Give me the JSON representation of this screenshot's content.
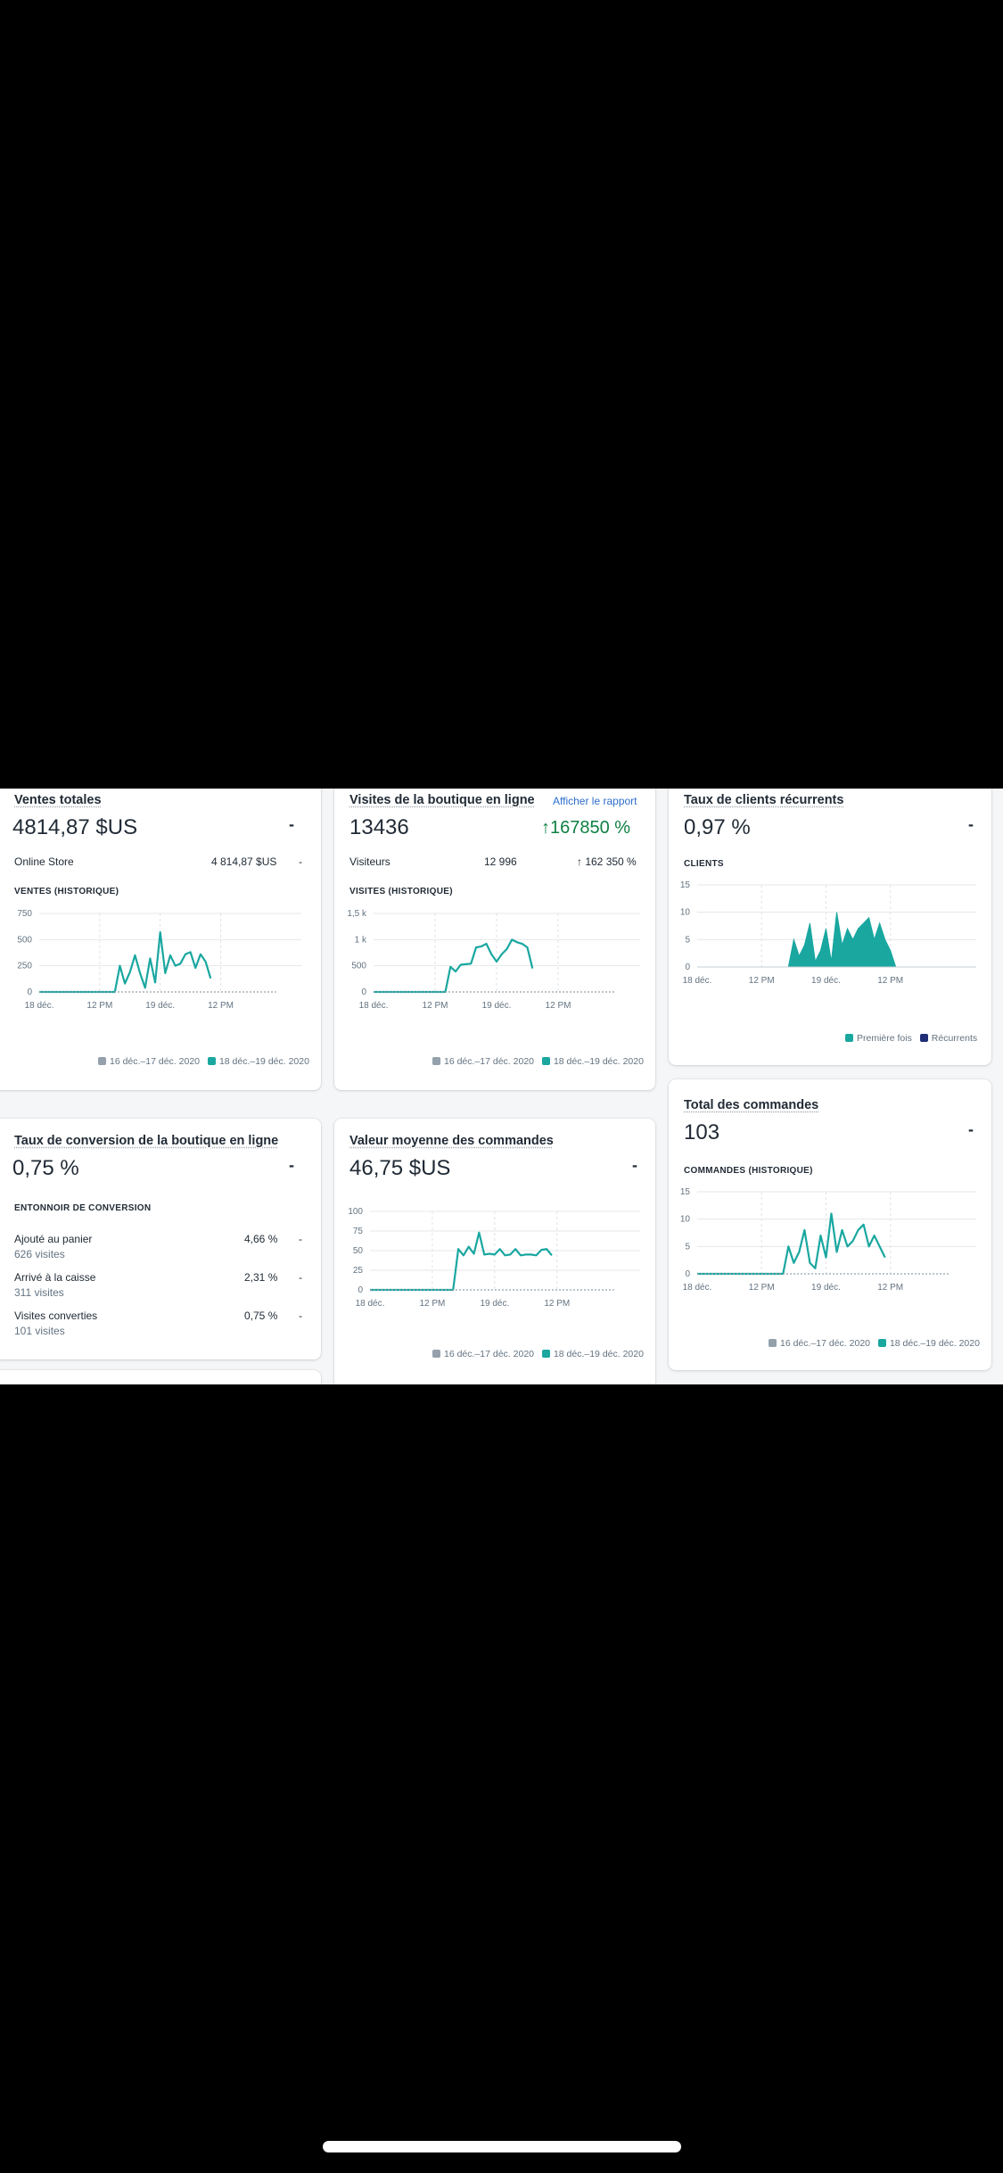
{
  "colors": {
    "accent": "#19a7a0",
    "previous": "#94a0ab",
    "dark": "#212b36",
    "muted": "#637381",
    "link": "#2c6ecb",
    "positive": "#108043"
  },
  "legend": {
    "previous": "16 déc.–17 déc. 2020",
    "current": "18 déc.–19 déc. 2020"
  },
  "sales": {
    "title": "Ventes totales",
    "value": "4814,87 $US",
    "change": "-",
    "row_label": "Online Store",
    "row_value": "4 814,87 $US",
    "row_change": "-",
    "caption": "VENTES (HISTORIQUE)"
  },
  "visits": {
    "title": "Visites de la boutique en ligne",
    "link": "Afficher le rapport",
    "value": "13436",
    "change": "167850 %",
    "change_icon": "arrow-up-icon",
    "row_label": "Visiteurs",
    "row_value": "12 996",
    "row_change": "↑ 162 350 %",
    "caption": "VISITES (HISTORIQUE)"
  },
  "returning": {
    "title": "Taux de clients récurrents",
    "value": "0,97 %",
    "change": "-",
    "caption": "CLIENTS",
    "legend_first": "Première fois",
    "legend_returning": "Récurrents"
  },
  "conversion": {
    "title": "Taux de conversion de la boutique en ligne",
    "value": "0,75 %",
    "change": "-",
    "caption": "ENTONNOIR DE CONVERSION",
    "rows": [
      {
        "label": "Ajouté au panier",
        "sub": "626 visites",
        "value": "4,66 %",
        "change": "-"
      },
      {
        "label": "Arrivé à la caisse",
        "sub": "311 visites",
        "value": "2,31 %",
        "change": "-"
      },
      {
        "label": "Visites converties",
        "sub": "101 visites",
        "value": "0,75 %",
        "change": "-"
      }
    ]
  },
  "aov": {
    "title": "Valeur moyenne des commandes",
    "value": "46,75 $US",
    "change": "-"
  },
  "orders": {
    "title": "Total des commandes",
    "value": "103",
    "change": "-",
    "caption": "COMMANDES (HISTORIQUE)"
  },
  "chart_data": [
    {
      "id": "sales",
      "type": "line",
      "title": "VENTES (HISTORIQUE)",
      "ylim": [
        0,
        750
      ],
      "yticks": [
        "0",
        "250",
        "500",
        "750"
      ],
      "xlim": [
        0,
        52
      ],
      "xticks": [
        {
          "at": 0,
          "label": "18 déc."
        },
        {
          "at": 12,
          "label": "12 PM"
        },
        {
          "at": 24,
          "label": "19 déc."
        },
        {
          "at": 36,
          "label": "12 PM"
        }
      ],
      "series": [
        {
          "name": "18 déc.–19 déc. 2020",
          "points": [
            [
              0,
              0
            ],
            [
              15,
              0
            ],
            [
              16,
              250
            ],
            [
              17,
              80
            ],
            [
              18,
              190
            ],
            [
              19,
              350
            ],
            [
              20,
              180
            ],
            [
              21,
              40
            ],
            [
              22,
              320
            ],
            [
              23,
              90
            ],
            [
              24,
              570
            ],
            [
              25,
              180
            ],
            [
              26,
              350
            ],
            [
              27,
              250
            ],
            [
              28,
              270
            ],
            [
              29,
              360
            ],
            [
              30,
              380
            ],
            [
              31,
              230
            ],
            [
              32,
              360
            ],
            [
              33,
              290
            ],
            [
              34,
              130
            ]
          ]
        },
        {
          "name": "16 déc.–17 déc. 2020",
          "points": [
            [
              0,
              0
            ],
            [
              47,
              0
            ]
          ],
          "style": "dashed"
        }
      ]
    },
    {
      "id": "visits",
      "type": "line",
      "title": "VISITES (HISTORIQUE)",
      "ylim": [
        0,
        1500
      ],
      "yticks": [
        "0",
        "500",
        "1 k",
        "1,5 k"
      ],
      "xlim": [
        0,
        52
      ],
      "xticks": [
        {
          "at": 0,
          "label": "18 déc."
        },
        {
          "at": 12,
          "label": "12 PM"
        },
        {
          "at": 24,
          "label": "19 déc."
        },
        {
          "at": 36,
          "label": "12 PM"
        }
      ],
      "series": [
        {
          "name": "18 déc.–19 déc. 2020",
          "points": [
            [
              0,
              0
            ],
            [
              14,
              0
            ],
            [
              15,
              480
            ],
            [
              16,
              390
            ],
            [
              17,
              520
            ],
            [
              18,
              530
            ],
            [
              19,
              540
            ],
            [
              20,
              850
            ],
            [
              21,
              870
            ],
            [
              22,
              920
            ],
            [
              23,
              720
            ],
            [
              24,
              580
            ],
            [
              25,
              720
            ],
            [
              26,
              820
            ],
            [
              27,
              1000
            ],
            [
              28,
              950
            ],
            [
              29,
              920
            ],
            [
              30,
              850
            ],
            [
              31,
              450
            ]
          ]
        },
        {
          "name": "16 déc.–17 déc. 2020",
          "points": [
            [
              0,
              0
            ],
            [
              47,
              0
            ]
          ],
          "style": "dashed"
        }
      ]
    },
    {
      "id": "returning",
      "type": "area",
      "title": "CLIENTS",
      "ylim": [
        0,
        15
      ],
      "yticks": [
        "0",
        "5",
        "10",
        "15"
      ],
      "xlim": [
        0,
        52
      ],
      "xticks": [
        {
          "at": 0,
          "label": "18 déc."
        },
        {
          "at": 12,
          "label": "12 PM"
        },
        {
          "at": 24,
          "label": "19 déc."
        },
        {
          "at": 36,
          "label": "12 PM"
        }
      ],
      "series": [
        {
          "name": "Première fois",
          "points": [
            [
              17,
              0
            ],
            [
              18,
              5
            ],
            [
              19,
              2
            ],
            [
              20,
              4
            ],
            [
              21,
              8
            ],
            [
              22,
              1
            ],
            [
              23,
              3
            ],
            [
              24,
              7
            ],
            [
              25,
              1
            ],
            [
              26,
              10
            ],
            [
              27,
              4
            ],
            [
              28,
              7
            ],
            [
              29,
              5
            ],
            [
              30,
              7
            ],
            [
              31,
              8
            ],
            [
              32,
              9
            ],
            [
              33,
              5
            ],
            [
              34,
              8
            ],
            [
              35,
              5
            ],
            [
              36,
              3
            ],
            [
              37,
              0
            ]
          ]
        },
        {
          "name": "Récurrents",
          "points": [
            [
              17,
              0
            ],
            [
              37,
              0
            ]
          ]
        }
      ]
    },
    {
      "id": "aov",
      "type": "line",
      "ylim": [
        0,
        100
      ],
      "yticks": [
        "0",
        "25",
        "50",
        "75",
        "100"
      ],
      "xlim": [
        0,
        52
      ],
      "xticks": [
        {
          "at": 0,
          "label": "18 déc."
        },
        {
          "at": 12,
          "label": "12 PM"
        },
        {
          "at": 24,
          "label": "19 déc."
        },
        {
          "at": 36,
          "label": "12 PM"
        }
      ],
      "series": [
        {
          "name": "18 déc.–19 déc. 2020",
          "points": [
            [
              0,
              0
            ],
            [
              16,
              0
            ],
            [
              17,
              52
            ],
            [
              18,
              44
            ],
            [
              19,
              55
            ],
            [
              20,
              46
            ],
            [
              21,
              73
            ],
            [
              22,
              45
            ],
            [
              23,
              46
            ],
            [
              24,
              45
            ],
            [
              25,
              52
            ],
            [
              26,
              44
            ],
            [
              27,
              45
            ],
            [
              28,
              52
            ],
            [
              29,
              44
            ],
            [
              30,
              45
            ],
            [
              31,
              45
            ],
            [
              32,
              44
            ],
            [
              33,
              51
            ],
            [
              34,
              52
            ],
            [
              35,
              44
            ]
          ]
        },
        {
          "name": "16 déc.–17 déc. 2020",
          "points": [
            [
              0,
              0
            ],
            [
              47,
              0
            ]
          ],
          "style": "dashed"
        }
      ]
    },
    {
      "id": "orders",
      "type": "line",
      "title": "COMMANDES (HISTORIQUE)",
      "ylim": [
        0,
        15
      ],
      "yticks": [
        "0",
        "5",
        "10",
        "15"
      ],
      "xlim": [
        0,
        52
      ],
      "xticks": [
        {
          "at": 0,
          "label": "18 déc."
        },
        {
          "at": 12,
          "label": "12 PM"
        },
        {
          "at": 24,
          "label": "19 déc."
        },
        {
          "at": 36,
          "label": "12 PM"
        }
      ],
      "series": [
        {
          "name": "18 déc.–19 déc. 2020",
          "points": [
            [
              0,
              0
            ],
            [
              16,
              0
            ],
            [
              17,
              5
            ],
            [
              18,
              2
            ],
            [
              19,
              4
            ],
            [
              20,
              8
            ],
            [
              21,
              2
            ],
            [
              22,
              1
            ],
            [
              23,
              7
            ],
            [
              24,
              3
            ],
            [
              25,
              11
            ],
            [
              26,
              4
            ],
            [
              27,
              8
            ],
            [
              28,
              5
            ],
            [
              29,
              6
            ],
            [
              30,
              8
            ],
            [
              31,
              9
            ],
            [
              32,
              5
            ],
            [
              33,
              7
            ],
            [
              34,
              5
            ],
            [
              35,
              3
            ]
          ]
        },
        {
          "name": "16 déc.–17 déc. 2020",
          "points": [
            [
              0,
              0
            ],
            [
              47,
              0
            ]
          ],
          "style": "dashed"
        }
      ]
    }
  ]
}
